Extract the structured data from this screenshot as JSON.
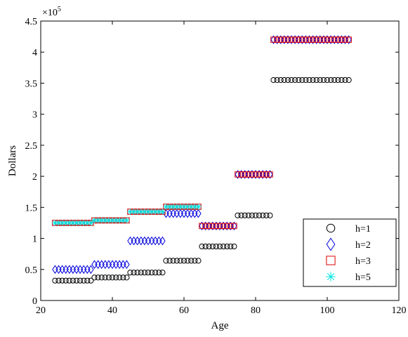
{
  "chart_data": {
    "type": "scatter",
    "title": "",
    "xlabel": "Age",
    "ylabel": "Dollars",
    "y_multiplier_label": "×10",
    "y_multiplier_exponent": "5",
    "xlim": [
      20,
      120
    ],
    "ylim": [
      0,
      4.5
    ],
    "y_scale_factor": 100000,
    "xticks": [
      20,
      40,
      60,
      80,
      100,
      120
    ],
    "yticks": [
      0,
      0.5,
      1,
      1.5,
      2,
      2.5,
      3,
      3.5,
      4,
      4.5
    ],
    "xtick_labels": [
      "20",
      "40",
      "60",
      "80",
      "100",
      "120"
    ],
    "ytick_labels": [
      "0",
      "0.5",
      "1",
      "1.5",
      "2",
      "2.5",
      "3",
      "3.5",
      "4",
      "4.5"
    ],
    "grid": false,
    "legend_position": "bottom-right",
    "series": [
      {
        "name": "h=1",
        "marker": "circle",
        "color": "#000000",
        "segments": [
          {
            "x_start": 24,
            "x_end": 34,
            "y": 0.32
          },
          {
            "x_start": 35,
            "x_end": 44,
            "y": 0.37
          },
          {
            "x_start": 45,
            "x_end": 54,
            "y": 0.45
          },
          {
            "x_start": 55,
            "x_end": 64,
            "y": 0.64
          },
          {
            "x_start": 65,
            "x_end": 74,
            "y": 0.87
          },
          {
            "x_start": 75,
            "x_end": 84,
            "y": 1.37
          },
          {
            "x_start": 85,
            "x_end": 106,
            "y": 3.55
          }
        ]
      },
      {
        "name": "h=2",
        "marker": "diamond",
        "color": "#0000dd",
        "segments": [
          {
            "x_start": 24,
            "x_end": 34,
            "y": 0.5
          },
          {
            "x_start": 35,
            "x_end": 44,
            "y": 0.58
          },
          {
            "x_start": 45,
            "x_end": 54,
            "y": 0.96
          },
          {
            "x_start": 55,
            "x_end": 64,
            "y": 1.4
          },
          {
            "x_start": 65,
            "x_end": 74,
            "y": 1.2
          },
          {
            "x_start": 75,
            "x_end": 84,
            "y": 2.03
          },
          {
            "x_start": 85,
            "x_end": 106,
            "y": 4.2
          }
        ]
      },
      {
        "name": "h=3",
        "marker": "square",
        "color": "#dd0000",
        "segments": [
          {
            "x_start": 24,
            "x_end": 34,
            "y": 1.25
          },
          {
            "x_start": 35,
            "x_end": 44,
            "y": 1.29
          },
          {
            "x_start": 45,
            "x_end": 54,
            "y": 1.43
          },
          {
            "x_start": 55,
            "x_end": 64,
            "y": 1.51
          },
          {
            "x_start": 65,
            "x_end": 74,
            "y": 1.2
          },
          {
            "x_start": 75,
            "x_end": 84,
            "y": 2.03
          },
          {
            "x_start": 85,
            "x_end": 106,
            "y": 4.2
          }
        ]
      },
      {
        "name": "h=5",
        "marker": "asterisk",
        "color": "#00e5e5",
        "segments": [
          {
            "x_start": 24,
            "x_end": 34,
            "y": 1.25
          },
          {
            "x_start": 35,
            "x_end": 44,
            "y": 1.29
          },
          {
            "x_start": 45,
            "x_end": 54,
            "y": 1.43
          },
          {
            "x_start": 55,
            "x_end": 64,
            "y": 1.51
          }
        ]
      }
    ]
  }
}
